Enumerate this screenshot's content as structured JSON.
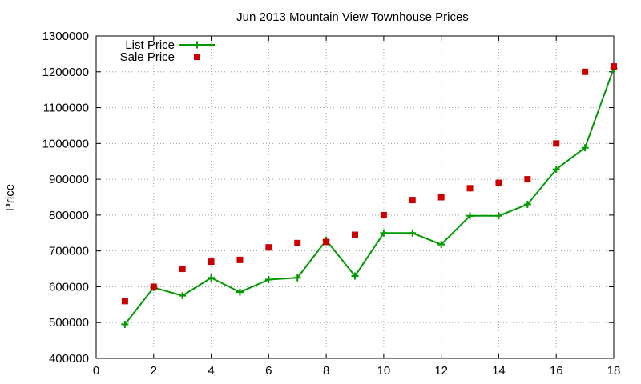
{
  "chart_data": {
    "type": "line",
    "title": "Jun 2013 Mountain View Townhouse Prices",
    "xlabel": "",
    "ylabel": "Price",
    "xlim": [
      0,
      18
    ],
    "ylim": [
      400000,
      1300000
    ],
    "x_ticks": [
      0,
      2,
      4,
      6,
      8,
      10,
      12,
      14,
      16,
      18
    ],
    "y_ticks": [
      400000,
      500000,
      600000,
      700000,
      800000,
      900000,
      1000000,
      1100000,
      1200000,
      1300000
    ],
    "grid": true,
    "legend_position": "top-left",
    "series": [
      {
        "name": "List Price",
        "style": "line-with-plus-markers",
        "color": "#009900",
        "x": [
          1,
          2,
          3,
          4,
          5,
          6,
          7,
          8,
          9,
          10,
          11,
          12,
          13,
          14,
          15,
          16,
          17,
          18
        ],
        "values": [
          495000,
          598000,
          575000,
          625000,
          585000,
          620000,
          625000,
          730000,
          630000,
          750000,
          750000,
          718000,
          798000,
          798000,
          830000,
          928000,
          988000,
          1210000
        ]
      },
      {
        "name": "Sale Price",
        "style": "square-points",
        "color": "#cc0000",
        "x": [
          1,
          2,
          3,
          4,
          5,
          6,
          7,
          8,
          9,
          10,
          11,
          12,
          13,
          14,
          15,
          16,
          17,
          18
        ],
        "values": [
          560000,
          600000,
          650000,
          670000,
          675000,
          710000,
          722000,
          725000,
          745000,
          800000,
          842000,
          850000,
          875000,
          890000,
          900000,
          1000000,
          1200000,
          1215000
        ]
      }
    ]
  }
}
